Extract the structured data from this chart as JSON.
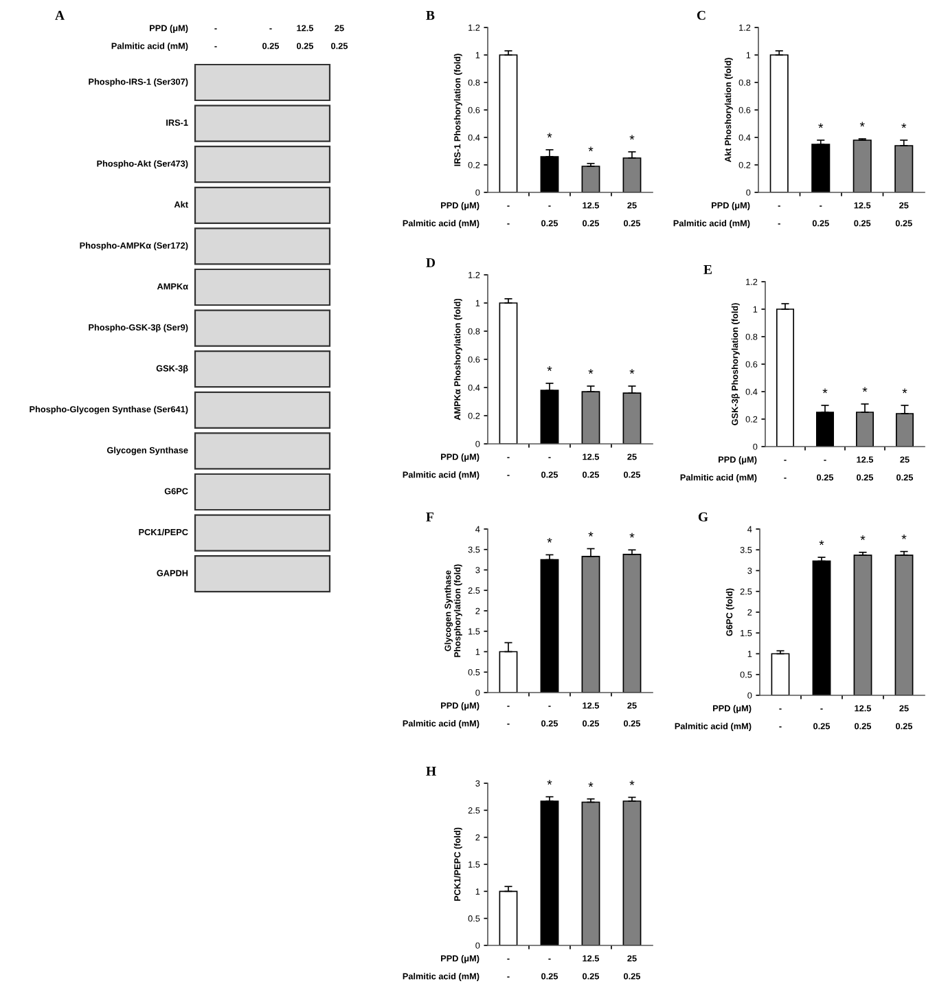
{
  "chart_data": [
    {
      "type": "other",
      "title": "A",
      "annotations": [
        "PPD (μM)",
        "-",
        "-",
        "12.5",
        "25",
        "Palmitic acid (mM)",
        "-",
        "0.25",
        "0.25",
        "0.25",
        "Phospho-IRS-1 (Ser307)",
        "IRS-1",
        "Phospho-Akt (Ser473)",
        "Akt",
        "Phospho-AMPKα (Ser172)",
        "AMPKα",
        "Phospho-GSK-3β (Ser9)",
        "GSK-3β",
        "Phospho-Glycogen Synthase (Ser641)",
        "Glycogen Synthase",
        "G6PC",
        "PCK1/PEPC",
        "GAPDH"
      ]
    },
    {
      "type": "bar",
      "title": "B",
      "ylabel": "IRS-1 Phoshorylation (fold)",
      "categories": [
        "-\n-",
        "-\n0.25",
        "12.5\n0.25",
        "25\n0.25"
      ],
      "values": [
        1.0,
        0.26,
        0.19,
        0.25
      ],
      "errors": [
        [
          1.0,
          1.03
        ],
        [
          0.26,
          0.31
        ],
        [
          0.19,
          0.21
        ],
        [
          0.25,
          0.295
        ]
      ],
      "colors": [
        "#ffffff",
        "#000000",
        "#808080",
        "#808080"
      ],
      "value_labels": [
        null,
        "*",
        "*",
        "*"
      ],
      "ylim": [
        0,
        1.2
      ],
      "yticks": [
        0,
        0.2,
        0.4,
        0.6,
        0.8,
        1,
        1.2
      ],
      "annotations": [
        "PPD (μM)",
        "Palmitic acid (mM)"
      ]
    },
    {
      "type": "bar",
      "title": "C",
      "ylabel": "Akt Phoshorylation (fold)",
      "categories": [
        "-\n-",
        "-\n0.25",
        "12.5\n0.25",
        "25\n0.25"
      ],
      "values": [
        1.0,
        0.35,
        0.38,
        0.34
      ],
      "errors": [
        [
          1.0,
          1.03
        ],
        [
          0.35,
          0.38
        ],
        [
          0.38,
          0.39
        ],
        [
          0.34,
          0.38
        ]
      ],
      "colors": [
        "#ffffff",
        "#000000",
        "#808080",
        "#808080"
      ],
      "value_labels": [
        null,
        "*",
        "*",
        "*"
      ],
      "ylim": [
        0,
        1.2
      ],
      "yticks": [
        0,
        0.2,
        0.4,
        0.6,
        0.8,
        1,
        1.2
      ],
      "annotations": [
        "PPD (μM)",
        "Palmitic acid (mM)"
      ]
    },
    {
      "type": "bar",
      "title": "D",
      "ylabel": "AMPKα Phoshorylation (fold)",
      "categories": [
        "-\n-",
        "-\n0.25",
        "12.5\n0.25",
        "25\n0.25"
      ],
      "values": [
        1.0,
        0.38,
        0.37,
        0.36
      ],
      "errors": [
        [
          1.0,
          1.03
        ],
        [
          0.38,
          0.43
        ],
        [
          0.37,
          0.41
        ],
        [
          0.36,
          0.41
        ]
      ],
      "colors": [
        "#ffffff",
        "#000000",
        "#808080",
        "#808080"
      ],
      "value_labels": [
        null,
        "*",
        "*",
        "*"
      ],
      "ylim": [
        0,
        1.2
      ],
      "yticks": [
        0,
        0.2,
        0.4,
        0.6,
        0.8,
        1,
        1.2
      ],
      "annotations": [
        "PPD (μM)",
        "Palmitic acid (mM)"
      ]
    },
    {
      "type": "bar",
      "title": "E",
      "ylabel": "GSK-3β Phoshorylation (fold)",
      "categories": [
        "-\n-",
        "-\n0.25",
        "12.5\n0.25",
        "25\n0.25"
      ],
      "values": [
        1.0,
        0.25,
        0.25,
        0.24
      ],
      "errors": [
        [
          1.0,
          1.04
        ],
        [
          0.25,
          0.3
        ],
        [
          0.25,
          0.31
        ],
        [
          0.24,
          0.3
        ]
      ],
      "colors": [
        "#ffffff",
        "#000000",
        "#808080",
        "#808080"
      ],
      "value_labels": [
        null,
        "*",
        "*",
        "*"
      ],
      "ylim": [
        0,
        1.2
      ],
      "yticks": [
        0,
        0.2,
        0.4,
        0.6,
        0.8,
        1,
        1.2
      ],
      "annotations": [
        "PPD (μM)",
        "Palmitic acid (mM)"
      ]
    },
    {
      "type": "bar",
      "title": "F",
      "ylabel": "Glycogen Synthase\nPhosphorylation (fold)",
      "categories": [
        "-\n-",
        "-\n0.25",
        "12.5\n0.25",
        "25\n0.25"
      ],
      "values": [
        1.0,
        3.25,
        3.33,
        3.38
      ],
      "errors": [
        [
          1.0,
          1.22
        ],
        [
          3.25,
          3.37
        ],
        [
          3.33,
          3.52
        ],
        [
          3.38,
          3.49
        ]
      ],
      "colors": [
        "#ffffff",
        "#000000",
        "#808080",
        "#808080"
      ],
      "value_labels": [
        null,
        "*",
        "*",
        "*"
      ],
      "ylim": [
        0,
        4
      ],
      "yticks": [
        0,
        0.5,
        1,
        1.5,
        2,
        2.5,
        3,
        3.5,
        4
      ],
      "annotations": [
        "PPD (μM)",
        "Palmitic acid (mM)"
      ]
    },
    {
      "type": "bar",
      "title": "G",
      "ylabel": "G6PC (fold)",
      "categories": [
        "-\n-",
        "-\n0.25",
        "12.5\n0.25",
        "25\n0.25"
      ],
      "values": [
        1.0,
        3.23,
        3.37,
        3.37
      ],
      "errors": [
        [
          1.0,
          1.07
        ],
        [
          3.23,
          3.32
        ],
        [
          3.37,
          3.44
        ],
        [
          3.37,
          3.46
        ]
      ],
      "colors": [
        "#ffffff",
        "#000000",
        "#808080",
        "#808080"
      ],
      "value_labels": [
        null,
        "*",
        "*",
        "*"
      ],
      "ylim": [
        0,
        4
      ],
      "yticks": [
        0,
        0.5,
        1,
        1.5,
        2,
        2.5,
        3,
        3.5,
        4
      ],
      "annotations": [
        "PPD (μM)",
        "Palmitic acid (mM)"
      ]
    },
    {
      "type": "bar",
      "title": "H",
      "ylabel": "PCK1/PEPC (fold)",
      "categories": [
        "-\n-",
        "-\n0.25",
        "12.5\n0.25",
        "25\n0.25"
      ],
      "values": [
        1.0,
        2.67,
        2.65,
        2.67
      ],
      "errors": [
        [
          1.0,
          1.09
        ],
        [
          2.67,
          2.75
        ],
        [
          2.65,
          2.71
        ],
        [
          2.67,
          2.74
        ]
      ],
      "colors": [
        "#ffffff",
        "#000000",
        "#808080",
        "#808080"
      ],
      "value_labels": [
        null,
        "*",
        "*",
        "*"
      ],
      "ylim": [
        0,
        3
      ],
      "yticks": [
        0,
        0.5,
        1,
        1.5,
        2,
        2.5,
        3
      ],
      "annotations": [
        "PPD (μM)",
        "Palmitic acid (mM)"
      ]
    }
  ]
}
